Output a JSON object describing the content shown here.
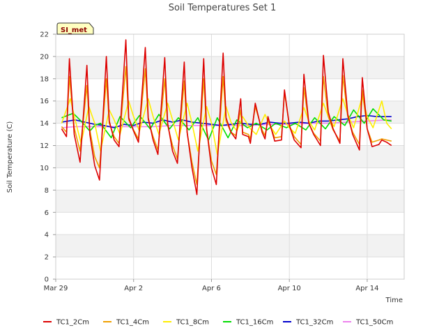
{
  "chart_data": {
    "type": "line",
    "title": "Soil Temperatures Set 1",
    "xlabel": "Time",
    "ylabel": "Soil Temperature (C)",
    "site_label": "SI_met",
    "ylim": [
      0,
      22
    ],
    "yticks": [
      0,
      2,
      4,
      6,
      8,
      10,
      12,
      14,
      16,
      18,
      20,
      22
    ],
    "xlim": [
      0,
      17.9
    ],
    "xticks": [
      {
        "value": 0,
        "label": "Mar 29"
      },
      {
        "value": 4,
        "label": "Apr 2"
      },
      {
        "value": 8,
        "label": "Apr 6"
      },
      {
        "value": 12,
        "label": "Apr 10"
      },
      {
        "value": 16,
        "label": "Apr 14"
      }
    ],
    "grid": true,
    "legend_position": "bottom",
    "series": [
      {
        "name": "TC1_2Cm",
        "color": "#dd0000",
        "x": [
          0.3,
          0.55,
          0.7,
          0.95,
          1.25,
          1.6,
          1.75,
          2.0,
          2.25,
          2.6,
          2.75,
          3.0,
          3.25,
          3.6,
          3.75,
          4.0,
          4.25,
          4.6,
          4.75,
          5.0,
          5.25,
          5.6,
          5.75,
          6.0,
          6.25,
          6.6,
          6.75,
          7.0,
          7.25,
          7.6,
          7.75,
          8.0,
          8.25,
          8.6,
          8.75,
          9.0,
          9.25,
          9.5,
          9.6,
          9.9,
          10.0,
          10.25,
          10.6,
          10.75,
          10.9,
          11.25,
          11.6,
          11.75,
          12.0,
          12.25,
          12.6,
          12.75,
          13.0,
          13.25,
          13.6,
          13.75,
          14.0,
          14.25,
          14.6,
          14.75,
          15.0,
          15.25,
          15.6,
          15.75,
          16.0,
          16.25,
          16.6,
          16.75,
          17.0,
          17.25
        ],
        "y": [
          13.5,
          12.8,
          19.8,
          13.0,
          10.5,
          19.2,
          13.0,
          10.2,
          8.9,
          20.0,
          14.2,
          12.5,
          11.9,
          21.5,
          14.5,
          13.3,
          12.3,
          20.8,
          14.5,
          12.5,
          11.2,
          19.9,
          14.0,
          11.5,
          10.4,
          19.5,
          13.2,
          10.0,
          7.6,
          19.8,
          13.5,
          10.0,
          8.5,
          20.3,
          14.5,
          13.2,
          12.6,
          16.2,
          13.0,
          12.8,
          12.2,
          15.8,
          13.2,
          12.6,
          14.6,
          12.4,
          12.5,
          17.0,
          13.8,
          12.5,
          11.8,
          18.4,
          14.0,
          13.0,
          12.0,
          20.1,
          15.0,
          13.5,
          12.2,
          19.8,
          14.8,
          13.0,
          11.6,
          18.1,
          13.5,
          11.9,
          12.1,
          12.5,
          12.3,
          12.0
        ]
      },
      {
        "name": "TC1_4Cm",
        "color": "#f0a000",
        "x": [
          0.3,
          0.55,
          0.7,
          0.95,
          1.25,
          1.6,
          1.75,
          2.0,
          2.25,
          2.6,
          2.75,
          3.0,
          3.25,
          3.6,
          3.75,
          4.0,
          4.25,
          4.6,
          4.75,
          5.0,
          5.25,
          5.6,
          5.75,
          6.0,
          6.25,
          6.6,
          6.75,
          7.0,
          7.25,
          7.6,
          7.75,
          8.0,
          8.25,
          8.6,
          8.75,
          9.0,
          9.25,
          9.5,
          9.6,
          9.9,
          10.0,
          10.25,
          10.6,
          10.75,
          10.9,
          11.25,
          11.6,
          11.75,
          12.0,
          12.25,
          12.6,
          12.75,
          13.0,
          13.25,
          13.6,
          13.75,
          14.0,
          14.25,
          14.6,
          14.75,
          15.0,
          15.25,
          15.6,
          15.75,
          16.0,
          16.25,
          16.6,
          16.75,
          17.0,
          17.25
        ],
        "y": [
          13.7,
          13.2,
          18.2,
          13.6,
          11.5,
          17.4,
          13.4,
          11.0,
          10.0,
          18.0,
          14.0,
          12.8,
          12.2,
          19.1,
          14.3,
          13.4,
          12.6,
          18.9,
          14.3,
          12.8,
          11.6,
          18.0,
          13.8,
          12.0,
          10.8,
          17.8,
          13.2,
          10.5,
          8.5,
          18.0,
          13.4,
          10.6,
          9.4,
          18.2,
          14.2,
          13.2,
          12.9,
          15.2,
          13.2,
          13.0,
          12.6,
          15.5,
          13.4,
          12.9,
          14.3,
          12.7,
          12.8,
          16.8,
          13.8,
          12.8,
          12.1,
          17.2,
          14.0,
          13.1,
          12.4,
          18.2,
          14.6,
          13.4,
          12.4,
          18.3,
          14.6,
          13.2,
          12.1,
          17.0,
          13.5,
          12.3,
          12.5,
          12.6,
          12.5,
          12.4
        ]
      },
      {
        "name": "TC1_8Cm",
        "color": "#ffee00",
        "x": [
          0.3,
          0.75,
          1.0,
          1.3,
          1.7,
          2.0,
          2.3,
          2.75,
          3.0,
          3.3,
          3.75,
          4.0,
          4.3,
          4.75,
          5.0,
          5.3,
          5.75,
          6.0,
          6.3,
          6.75,
          7.0,
          7.3,
          7.75,
          8.0,
          8.3,
          8.75,
          9.0,
          9.3,
          9.6,
          10.0,
          10.3,
          10.75,
          11.0,
          11.3,
          11.75,
          12.0,
          12.3,
          12.75,
          13.0,
          13.3,
          13.75,
          14.0,
          14.3,
          14.75,
          15.0,
          15.3,
          15.75,
          16.0,
          16.3,
          16.75,
          17.0,
          17.25
        ],
        "y": [
          14.0,
          16.2,
          14.3,
          12.2,
          15.5,
          14.0,
          11.5,
          15.2,
          14.3,
          13.0,
          16.0,
          14.6,
          13.3,
          16.2,
          14.6,
          13.0,
          15.8,
          14.3,
          12.5,
          15.8,
          14.0,
          11.5,
          15.5,
          14.0,
          11.2,
          15.5,
          14.1,
          13.3,
          14.6,
          13.5,
          13.0,
          14.8,
          13.8,
          13.0,
          14.2,
          13.6,
          13.1,
          15.4,
          14.2,
          13.4,
          15.8,
          14.6,
          13.7,
          16.2,
          14.8,
          13.6,
          16.4,
          14.6,
          13.6,
          16.0,
          14.0,
          13.5
        ]
      },
      {
        "name": "TC1_16Cm",
        "color": "#00dd00",
        "x": [
          0.3,
          0.9,
          1.3,
          1.75,
          2.0,
          2.3,
          2.85,
          3.3,
          3.85,
          4.3,
          4.85,
          5.3,
          5.85,
          6.3,
          6.85,
          7.3,
          7.85,
          8.3,
          8.85,
          9.3,
          9.85,
          10.3,
          10.85,
          11.3,
          11.85,
          12.3,
          12.85,
          13.3,
          13.85,
          14.3,
          14.85,
          15.3,
          15.85,
          16.3,
          16.85,
          17.25
        ],
        "y": [
          14.5,
          14.9,
          14.2,
          13.3,
          13.8,
          14.0,
          12.7,
          14.6,
          13.6,
          14.7,
          13.5,
          14.8,
          13.5,
          14.5,
          13.4,
          14.5,
          12.5,
          14.5,
          12.7,
          14.3,
          13.6,
          14.0,
          13.4,
          14.0,
          13.6,
          14.0,
          13.4,
          14.5,
          13.5,
          14.6,
          13.8,
          15.2,
          14.0,
          15.3,
          14.3,
          14.2
        ]
      },
      {
        "name": "TC1_32Cm",
        "color": "#0000cc",
        "x": [
          0.3,
          1.0,
          1.5,
          2.0,
          2.5,
          3.0,
          3.5,
          4.0,
          4.5,
          5.0,
          5.5,
          6.0,
          6.5,
          7.0,
          7.5,
          8.0,
          8.5,
          9.0,
          9.5,
          10.0,
          10.5,
          11.0,
          11.5,
          12.0,
          12.5,
          13.0,
          13.5,
          14.0,
          14.5,
          15.0,
          15.5,
          16.0,
          16.5,
          17.0,
          17.25
        ],
        "y": [
          14.1,
          14.3,
          14.1,
          13.9,
          13.8,
          13.6,
          13.9,
          13.8,
          14.1,
          14.0,
          14.3,
          14.1,
          14.3,
          14.1,
          14.0,
          13.9,
          13.8,
          13.9,
          14.0,
          13.9,
          13.9,
          14.1,
          14.0,
          14.0,
          14.1,
          14.0,
          14.2,
          14.2,
          14.3,
          14.4,
          14.6,
          14.7,
          14.6,
          14.6,
          14.6
        ]
      },
      {
        "name": "TC1_50Cm",
        "color": "#ee82ee",
        "x": [
          0.3,
          1.0,
          2.0,
          3.0,
          4.0,
          5.0,
          6.0,
          7.0,
          8.0,
          9.0,
          10.0,
          11.0,
          12.0,
          13.0,
          14.0,
          15.0,
          16.0,
          17.0,
          17.25
        ],
        "y": [
          13.6,
          13.7,
          13.7,
          13.7,
          13.7,
          13.7,
          13.8,
          13.8,
          13.8,
          13.8,
          13.8,
          13.9,
          13.9,
          14.0,
          14.0,
          14.1,
          14.2,
          14.3,
          14.3
        ]
      }
    ]
  }
}
